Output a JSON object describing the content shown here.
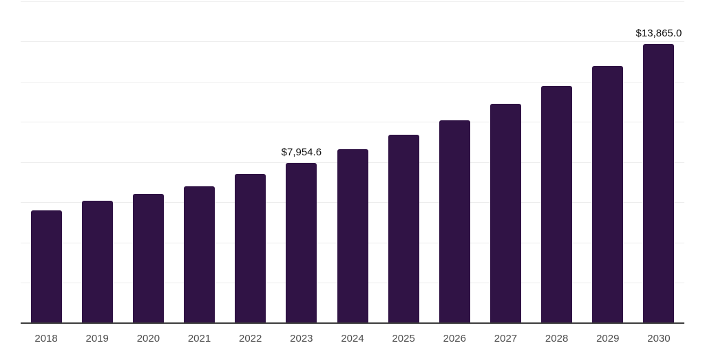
{
  "chart_data": {
    "type": "bar",
    "title": "",
    "xlabel": "",
    "ylabel": "",
    "categories": [
      "2018",
      "2019",
      "2020",
      "2021",
      "2022",
      "2023",
      "2024",
      "2025",
      "2026",
      "2027",
      "2028",
      "2029",
      "2030"
    ],
    "values": [
      5600,
      6100,
      6440,
      6820,
      7410,
      7954.6,
      8660,
      9380,
      10090,
      10920,
      11800,
      12800,
      13865
    ],
    "data_labels": [
      "",
      "",
      "",
      "",
      "",
      "$7,954.6",
      "",
      "",
      "",
      "",
      "",
      "",
      "$13,865.0"
    ],
    "ylim": [
      0,
      16000
    ],
    "grid": true,
    "grid_interval": 2000,
    "legend_position": "none",
    "colors": {
      "bar": "#301345",
      "gridline": "#ededed",
      "axis_line": "#3c3c3c",
      "tick_label": "#4d4d4d",
      "data_label": "#111111",
      "background": "#ffffff"
    }
  }
}
